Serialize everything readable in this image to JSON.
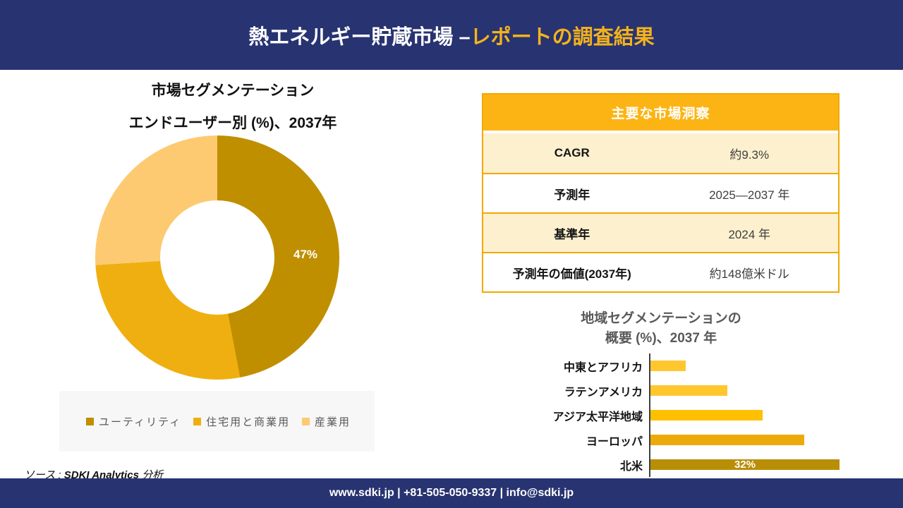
{
  "theme": {
    "navy": "#283371",
    "accent_yellow": "#F5B31B",
    "table_header_gold": "#FCB415",
    "table_row_cream": "#FDF0CF",
    "table_border_gold": "#F2A900",
    "legend_bg": "#F7F7F7"
  },
  "header": {
    "title_white": "熱エネルギー貯蔵市場 –",
    "title_accent": "レポートの調査結果"
  },
  "insights": {
    "header_label": "主要な市場洞察",
    "rows": [
      {
        "label": "CAGR",
        "value": "約9.3%"
      },
      {
        "label": "予測年",
        "value": "2025—2037 年"
      },
      {
        "label": "基準年",
        "value": "2024 年"
      },
      {
        "label": "予測年の価値(2037年)",
        "value": "約148億米ドル"
      }
    ]
  },
  "chart_data": [
    {
      "type": "pie",
      "subtype": "donut",
      "title": "市場セグメンテーション エンドユーザー別 (%)、2037年",
      "title_lines": [
        "市場セグメンテーション",
        "エンドユーザー別 (%)、2037年"
      ],
      "categories": [
        "ユーティリティ",
        "住宅用と商業用",
        "産業用"
      ],
      "values": [
        47,
        27,
        26
      ],
      "colors": [
        "#BF8F00",
        "#EFAF10",
        "#FDCA72"
      ],
      "data_labels": [
        "47%",
        "",
        ""
      ],
      "legend_position": "bottom"
    },
    {
      "type": "bar",
      "orientation": "horizontal",
      "title": "地域セグメンテーションの概要 (%)、2037 年",
      "title_lines": [
        "地域セグメンテーションの",
        "概要 (%)、2037 年"
      ],
      "categories": [
        "中東とアフリカ",
        "ラテンアメリカ",
        "アジア太平洋地域",
        "ヨーロッパ",
        "北米"
      ],
      "values": [
        6,
        13,
        19,
        26,
        32
      ],
      "colors": [
        "#FFC62E",
        "#FFC62E",
        "#FFC000",
        "#ECAA0B",
        "#B98E07"
      ],
      "data_labels": [
        "",
        "",
        "",
        "",
        "32%"
      ],
      "xlim": [
        0,
        32
      ],
      "grid": false,
      "legend_position": "none"
    }
  ],
  "source": {
    "prefix": "ソース :",
    "name": "SDKI Analytics",
    "suffix": "分析"
  },
  "footer": {
    "text": "www.sdki.jp | +81-505-050-9337 | info@sdki.jp"
  }
}
